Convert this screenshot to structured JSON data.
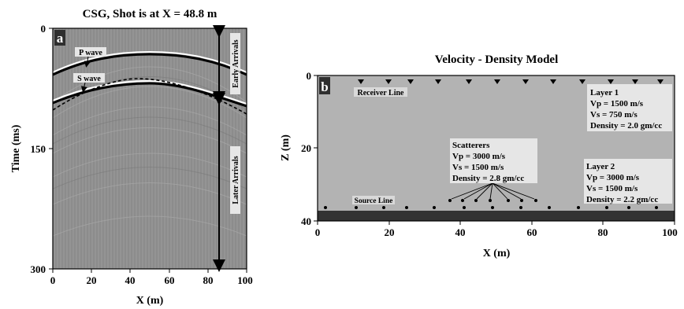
{
  "panel_a": {
    "letter": "a",
    "title": "CSG, Shot is at X = 48.8 m",
    "xlabel": "X (m)",
    "ylabel": "Time (ms)",
    "x_ticks": [
      "0",
      "20",
      "40",
      "60",
      "80",
      "100"
    ],
    "y_ticks": [
      "0",
      "150",
      "300"
    ],
    "labels": {
      "p_wave": "P wave",
      "s_wave": "S wave",
      "early_arrivals": "Early Arrivals",
      "later_arrivals": "Later Arrivals"
    }
  },
  "panel_b": {
    "letter": "b",
    "title": "Velocity - Density Model",
    "xlabel": "X (m)",
    "ylabel": "Z (m)",
    "x_ticks": [
      "0",
      "20",
      "40",
      "60",
      "80",
      "100"
    ],
    "y_ticks": [
      "0",
      "20",
      "40"
    ],
    "receiver_line": "Receiver Line",
    "source_line": "Source Line",
    "scatterers": [
      "Scatterers",
      "Vp = 3000 m/s",
      "Vs = 1500 m/s",
      "Density = 2.8 gm/cc"
    ],
    "layer1": [
      "Layer 1",
      "Vp = 1500 m/s",
      "Vs = 750 m/s",
      "Density = 2.0 gm/cc"
    ],
    "layer2": [
      "Layer 2",
      "Vp = 3000 m/s",
      "Vs = 1500 m/s",
      "Density = 2.2 gm/cc"
    ]
  },
  "colors": {
    "seismic_bg": "#8f8f8f",
    "model_bg": "#b3b3b3",
    "layer2_band": "#333333",
    "label_box": "#e6e6e6"
  }
}
